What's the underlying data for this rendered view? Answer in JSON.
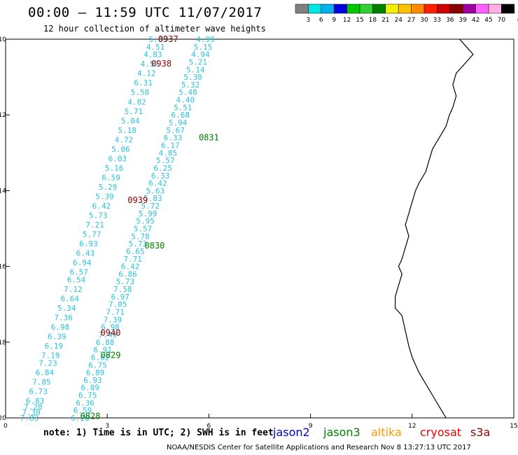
{
  "header": {
    "title": "00:00 – 11:59 UTC 11/07/2017",
    "subtitle": "12 hour collection of altimeter wave heights"
  },
  "color_scale": {
    "unit": "(ft)",
    "labels": [
      "3",
      "6",
      "9",
      "12",
      "15",
      "18",
      "21",
      "24",
      "27",
      "30",
      "33",
      "36",
      "39",
      "42",
      "45",
      "70"
    ],
    "colors": [
      "#808080",
      "#00e5e5",
      "#00b0f0",
      "#0000e0",
      "#00c800",
      "#30d030",
      "#008000",
      "#f0f000",
      "#ffc000",
      "#ff8c00",
      "#ff2000",
      "#d00000",
      "#8b0000",
      "#a000a0",
      "#ff60ff",
      "#ffb0e0",
      "#000000"
    ]
  },
  "axes": {
    "x_ticks": [
      "0",
      "3",
      "6",
      "9",
      "12",
      "15"
    ],
    "y_ticks": [
      "-10",
      "-12",
      "-14",
      "-16",
      "-18",
      "-20"
    ]
  },
  "map": {
    "lat_range": [
      -20,
      -10
    ],
    "lon_range": [
      0,
      15
    ],
    "coastline": [
      [
        13.4,
        -10.0
      ],
      [
        13.6,
        -10.2
      ],
      [
        13.8,
        -10.4
      ],
      [
        13.6,
        -10.6
      ],
      [
        13.3,
        -10.9
      ],
      [
        13.2,
        -11.2
      ],
      [
        13.3,
        -11.5
      ],
      [
        13.2,
        -11.8
      ],
      [
        13.1,
        -12.0
      ],
      [
        13.0,
        -12.3
      ],
      [
        12.8,
        -12.6
      ],
      [
        12.6,
        -12.9
      ],
      [
        12.5,
        -13.2
      ],
      [
        12.4,
        -13.5
      ],
      [
        12.2,
        -13.8
      ],
      [
        12.1,
        -14.0
      ],
      [
        12.0,
        -14.3
      ],
      [
        11.9,
        -14.6
      ],
      [
        11.8,
        -14.9
      ],
      [
        11.9,
        -15.2
      ],
      [
        11.8,
        -15.5
      ],
      [
        11.7,
        -15.8
      ],
      [
        11.6,
        -16.0
      ],
      [
        11.7,
        -16.2
      ],
      [
        11.6,
        -16.5
      ],
      [
        11.5,
        -16.8
      ],
      [
        11.5,
        -17.1
      ],
      [
        11.7,
        -17.3
      ],
      [
        11.8,
        -17.7
      ],
      [
        11.9,
        -18.1
      ],
      [
        12.0,
        -18.4
      ],
      [
        12.2,
        -18.8
      ],
      [
        12.4,
        -19.1
      ],
      [
        12.6,
        -19.4
      ],
      [
        12.8,
        -19.7
      ],
      [
        13.0,
        -20.0
      ]
    ]
  },
  "satellites": {
    "jason2": {
      "label": "jason2",
      "color": "#0000cc"
    },
    "jason3": {
      "label": "jason3",
      "color": "#008000"
    },
    "altika": {
      "label": "altika",
      "color": "#ff9900"
    },
    "cryosat": {
      "label": "cryosat",
      "color": "#ee0000"
    },
    "s3a": {
      "label": "s3a",
      "color": "#8b0000"
    }
  },
  "tracks": [
    {
      "satellite": "s3a",
      "time": "0937",
      "label_pos": [
        5.1,
        -10.0
      ],
      "obs": [
        [
          "5.03",
          -10.0
        ],
        [
          "4.51",
          -10.2
        ],
        [
          "4.83",
          -10.4
        ],
        [
          "4.57",
          -10.65
        ],
        [
          "4.12",
          -10.9
        ],
        [
          "6.31",
          -11.15
        ],
        [
          "5.58",
          -11.4
        ],
        [
          "4.82",
          -11.65
        ],
        [
          "5.71",
          -11.9
        ],
        [
          "5.04",
          -12.15
        ],
        [
          "5.18",
          -12.4
        ],
        [
          "4.72",
          -12.65
        ],
        [
          "5.06",
          -12.9
        ],
        [
          "6.03",
          -13.15
        ],
        [
          "5.16",
          -13.4
        ],
        [
          "6.59",
          -13.65
        ],
        [
          "5.29",
          -13.9
        ],
        [
          "5.39",
          -14.15
        ],
        [
          "6.42",
          -14.4
        ],
        [
          "5.73",
          -14.65
        ],
        [
          "7.21",
          -14.9
        ],
        [
          "5.77",
          -15.15
        ],
        [
          "6.93",
          -15.4
        ],
        [
          "6.43",
          -15.65
        ],
        [
          "6.94",
          -15.9
        ],
        [
          "6.57",
          -16.15
        ],
        [
          "6.54",
          -16.35
        ],
        [
          "7.12",
          -16.6
        ],
        [
          "6.64",
          -16.85
        ],
        [
          "5.34",
          -17.1
        ],
        [
          "7.36",
          -17.35
        ],
        [
          "6.98",
          -17.6
        ],
        [
          "6.39",
          -17.85
        ],
        [
          "6.19",
          -18.1
        ],
        [
          "7.19",
          -18.35
        ],
        [
          "7.23",
          -18.55
        ],
        [
          "6.84",
          -18.8
        ],
        [
          "7.85",
          -19.05
        ],
        [
          "6.73",
          -19.3
        ],
        [
          "6.83",
          -19.55
        ],
        [
          "7.28",
          -19.7
        ],
        [
          "7.30",
          -19.85
        ],
        [
          "7.83",
          -20.0
        ]
      ]
    },
    {
      "satellite": "s3a",
      "time": "0938",
      "label_pos": [
        4.7,
        -10.7
      ],
      "obs": [
        [
          "4.99",
          -10.0
        ],
        [
          "5.15",
          -10.2
        ],
        [
          "4.94",
          -10.4
        ],
        [
          "5.21",
          -10.6
        ],
        [
          "5.14",
          -10.8
        ],
        [
          "5.30",
          -11.0
        ],
        [
          "5.32",
          -11.2
        ],
        [
          "5.48",
          -11.4
        ],
        [
          "4.40",
          -11.6
        ],
        [
          "5.51",
          -11.8
        ],
        [
          "6.68",
          -12.0
        ],
        [
          "5.94",
          -12.2
        ],
        [
          "5.67",
          -12.4
        ],
        [
          "6.33",
          -12.6
        ],
        [
          "6.17",
          -12.8
        ],
        [
          "4.85",
          -13.0
        ],
        [
          "5.57",
          -13.2
        ],
        [
          "6.25",
          -13.4
        ],
        [
          "6.33",
          -13.6
        ],
        [
          "6.42",
          -13.8
        ],
        [
          "5.63",
          -14.0
        ],
        [
          "5.83",
          -14.2
        ],
        [
          "5.72",
          -14.4
        ],
        [
          "5.99",
          -14.6
        ],
        [
          "5.95",
          -14.8
        ],
        [
          "5.57",
          -15.0
        ],
        [
          "5.78",
          -15.2
        ],
        [
          "5.73",
          -15.4
        ],
        [
          "6.65",
          -15.6
        ],
        [
          "7.71",
          -15.8
        ],
        [
          "6.42",
          -16.0
        ],
        [
          "6.86",
          -16.2
        ],
        [
          "5.73",
          -16.4
        ],
        [
          "7.58",
          -16.6
        ],
        [
          "6.97",
          -16.8
        ],
        [
          "7.05",
          -17.0
        ],
        [
          "7.71",
          -17.2
        ],
        [
          "7.39",
          -17.4
        ],
        [
          "6.98",
          -17.6
        ],
        [
          "7.49",
          -17.8
        ],
        [
          "6.88",
          -18.0
        ],
        [
          "6.91",
          -18.2
        ],
        [
          "6.62",
          -18.4
        ],
        [
          "6.75",
          -18.6
        ],
        [
          "6.89",
          -18.8
        ],
        [
          "6.93",
          -19.0
        ],
        [
          "6.89",
          -19.2
        ],
        [
          "6.75",
          -19.4
        ],
        [
          "6.36",
          -19.6
        ],
        [
          "6.59",
          -19.8
        ],
        [
          "6.28",
          -20.0
        ]
      ]
    }
  ],
  "time_labels": [
    {
      "time": "0937",
      "lon": 4.8,
      "lat": -10.0,
      "satellite": "s3a"
    },
    {
      "time": "0938",
      "lon": 4.6,
      "lat": -10.65,
      "satellite": "s3a"
    },
    {
      "time": "0831",
      "lon": 6.0,
      "lat": -12.6,
      "satellite": "jason3"
    },
    {
      "time": "0939",
      "lon": 3.9,
      "lat": -14.25,
      "satellite": "s3a"
    },
    {
      "time": "0830",
      "lon": 4.4,
      "lat": -15.45,
      "satellite": "jason3"
    },
    {
      "time": "0940",
      "lon": 3.1,
      "lat": -17.75,
      "satellite": "s3a"
    },
    {
      "time": "0829",
      "lon": 3.1,
      "lat": -18.35,
      "satellite": "jason3"
    },
    {
      "time": "0828",
      "lon": 2.5,
      "lat": -19.95,
      "satellite": "jason3"
    }
  ],
  "note": "note: 1) Time is in UTC; 2) SWH is in feet",
  "credit": "NOAA/NESDIS Center for Satellite Applications and Research   Nov  8 13:27:13 UTC 2017"
}
